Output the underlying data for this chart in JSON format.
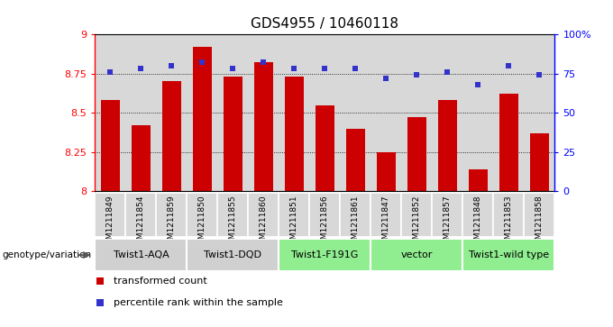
{
  "title": "GDS4955 / 10460118",
  "samples": [
    "GSM1211849",
    "GSM1211854",
    "GSM1211859",
    "GSM1211850",
    "GSM1211855",
    "GSM1211860",
    "GSM1211851",
    "GSM1211856",
    "GSM1211861",
    "GSM1211847",
    "GSM1211852",
    "GSM1211857",
    "GSM1211848",
    "GSM1211853",
    "GSM1211858"
  ],
  "bar_values": [
    8.58,
    8.42,
    8.7,
    8.92,
    8.73,
    8.82,
    8.73,
    8.55,
    8.4,
    8.25,
    8.47,
    8.58,
    8.14,
    8.62,
    8.37
  ],
  "percentile_values": [
    76,
    78,
    80,
    82,
    78,
    82,
    78,
    78,
    78,
    72,
    74,
    76,
    68,
    80,
    74
  ],
  "ylim": [
    8.0,
    9.0
  ],
  "y2lim": [
    0,
    100
  ],
  "yticks": [
    8.0,
    8.25,
    8.5,
    8.75,
    9.0
  ],
  "ytick_labels": [
    "8",
    "8.25",
    "8.5",
    "8.75",
    "9"
  ],
  "y2ticks": [
    0,
    25,
    50,
    75,
    100
  ],
  "y2tick_labels": [
    "0",
    "25",
    "50",
    "75",
    "100%"
  ],
  "bar_color": "#cc0000",
  "percentile_color": "#3333cc",
  "col_bg_color": "#d8d8d8",
  "groups": [
    {
      "label": "Twist1-AQA",
      "start": 0,
      "end": 2,
      "color": "#d0d0d0"
    },
    {
      "label": "Twist1-DQD",
      "start": 3,
      "end": 5,
      "color": "#d0d0d0"
    },
    {
      "label": "Twist1-F191G",
      "start": 6,
      "end": 8,
      "color": "#90ee90"
    },
    {
      "label": "vector",
      "start": 9,
      "end": 11,
      "color": "#90ee90"
    },
    {
      "label": "Twist1-wild type",
      "start": 12,
      "end": 14,
      "color": "#90ee90"
    }
  ],
  "legend_bar_label": "transformed count",
  "legend_pct_label": "percentile rank within the sample",
  "genotype_label": "genotype/variation"
}
